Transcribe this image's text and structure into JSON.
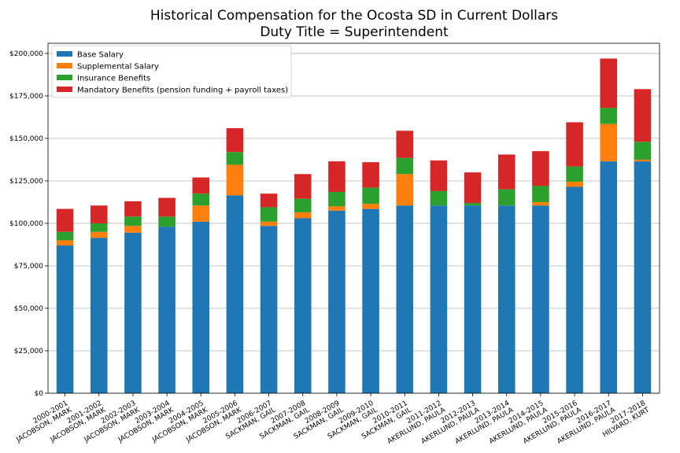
{
  "chart_data": {
    "type": "bar",
    "stacked": true,
    "title": "Historical Compensation for the Ocosta SD in Current Dollars",
    "subtitle": "Duty Title = Superintendent",
    "xlabel": "",
    "ylabel": "",
    "ylim": [
      0,
      206000
    ],
    "yticks": [
      0,
      25000,
      50000,
      75000,
      100000,
      125000,
      150000,
      175000,
      200000
    ],
    "ytick_labels": [
      "$0",
      "$25,000",
      "$50,000",
      "$75,000",
      "$100,000",
      "$125,000",
      "$150,000",
      "$175,000",
      "$200,000"
    ],
    "grid": "horizontal",
    "legend_position": "top-left",
    "categories": [
      [
        "2000-2001",
        "JACOBSON, MARK"
      ],
      [
        "2001-2002",
        "JACOBSON, MARK"
      ],
      [
        "2002-2003",
        "JACOBSON, MARK"
      ],
      [
        "2003-2004",
        "JACOBSON, MARK"
      ],
      [
        "2004-2005",
        "JACOBSON, MARK"
      ],
      [
        "2005-2006",
        "JACOBSON, MARK"
      ],
      [
        "2006-2007",
        "SACKMAN, GAIL"
      ],
      [
        "2007-2008",
        "SACKMAN, GAIL"
      ],
      [
        "2008-2009",
        "SACKMAN, GAIL"
      ],
      [
        "2009-2010",
        "SACKMAN, GAIL"
      ],
      [
        "2010-2011",
        "SACKMAN, GAIL"
      ],
      [
        "2011-2012",
        "AKERLUND, PAULA"
      ],
      [
        "2012-2013",
        "AKERLUND, PAULA"
      ],
      [
        "2013-2014",
        "AKERLUND, PAULA"
      ],
      [
        "2014-2015",
        "AKERLUND, PAULA"
      ],
      [
        "2015-2016",
        "AKERLUND, PAULA"
      ],
      [
        "2016-2017",
        "AKERLUND, PAULA"
      ],
      [
        "2017-2018",
        "HILYARD, KURT"
      ]
    ],
    "series": [
      {
        "name": "Base Salary",
        "color": "#1f77b4",
        "values": [
          87000,
          91500,
          94500,
          98000,
          101000,
          116500,
          98500,
          103000,
          107500,
          108500,
          110500,
          110500,
          110500,
          110500,
          110500,
          121500,
          136500,
          136500
        ]
      },
      {
        "name": "Supplemental Salary",
        "color": "#ff7f0e",
        "values": [
          3000,
          3500,
          4000,
          0,
          9500,
          18000,
          2500,
          3500,
          2500,
          3000,
          18500,
          0,
          0,
          0,
          2000,
          3000,
          22000,
          1000
        ]
      },
      {
        "name": "Insurance Benefits",
        "color": "#2ca02c",
        "values": [
          5000,
          5000,
          5500,
          6000,
          7000,
          7500,
          8500,
          8000,
          8500,
          9500,
          9500,
          8500,
          1500,
          9500,
          9500,
          9000,
          9500,
          10500
        ]
      },
      {
        "name": "Mandatory Benefits (pension funding + payroll taxes)",
        "color": "#d62728",
        "values": [
          13500,
          10500,
          9000,
          11000,
          9500,
          14000,
          8000,
          14500,
          18000,
          15000,
          16000,
          18000,
          18000,
          20500,
          20500,
          26000,
          29000,
          31000
        ]
      }
    ]
  }
}
